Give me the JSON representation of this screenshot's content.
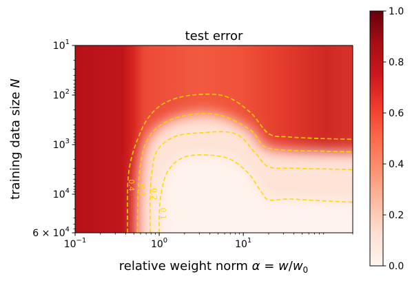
{
  "chart_data": {
    "type": "heatmap",
    "title": "test error",
    "xlabel": "relative weight norm α = w/w₀",
    "ylabel": "training data size N",
    "x_scale": "log",
    "y_scale": "log",
    "y_inverted": true,
    "xlim": [
      0.1,
      200
    ],
    "ylim": [
      10,
      60000
    ],
    "x_ticks": [
      {
        "value": 0.1,
        "base": "10",
        "exp": "−1"
      },
      {
        "value": 1,
        "base": "10",
        "exp": "0"
      },
      {
        "value": 10,
        "base": "10",
        "exp": "1"
      }
    ],
    "y_ticks": [
      {
        "value": 10,
        "base": "10",
        "exp": "1"
      },
      {
        "value": 100,
        "base": "10",
        "exp": "2"
      },
      {
        "value": 1000,
        "base": "10",
        "exp": "3"
      },
      {
        "value": 10000,
        "base": "10",
        "exp": "4"
      },
      {
        "value": 60000,
        "prefix": "6 × ",
        "base": "10",
        "exp": "4"
      }
    ],
    "colormap": "Reds",
    "colorbar": {
      "range": [
        0.0,
        1.0
      ],
      "ticks": [
        "0.0",
        "0.2",
        "0.4",
        "0.6",
        "0.8",
        "1.0"
      ]
    },
    "contour_color": "#ffd700",
    "contour_style": "dashed",
    "contours": [
      {
        "level": 0.4,
        "label": "0.4",
        "points": [
          [
            0.42,
            60000
          ],
          [
            0.42,
            8000
          ],
          [
            0.45,
            2500
          ],
          [
            0.55,
            800
          ],
          [
            0.75,
            280
          ],
          [
            1.2,
            140
          ],
          [
            2.5,
            100
          ],
          [
            6,
            105
          ],
          [
            12,
            220
          ],
          [
            20,
            600
          ],
          [
            35,
            700
          ],
          [
            80,
            750
          ],
          [
            200,
            780
          ]
        ]
      },
      {
        "level": 0.3,
        "label": "0.3",
        "points": [
          [
            0.55,
            60000
          ],
          [
            0.56,
            10000
          ],
          [
            0.6,
            2500
          ],
          [
            0.7,
            900
          ],
          [
            1.0,
            420
          ],
          [
            2,
            260
          ],
          [
            5,
            250
          ],
          [
            12,
            500
          ],
          [
            18,
            1100
          ],
          [
            35,
            1300
          ],
          [
            80,
            1350
          ],
          [
            200,
            1400
          ]
        ]
      },
      {
        "level": 0.2,
        "label": "0.2",
        "points": [
          [
            0.78,
            60000
          ],
          [
            0.78,
            12000
          ],
          [
            0.82,
            3500
          ],
          [
            0.95,
            1300
          ],
          [
            1.5,
            700
          ],
          [
            3,
            580
          ],
          [
            8,
            600
          ],
          [
            14,
            1500
          ],
          [
            20,
            2800
          ],
          [
            40,
            3000
          ],
          [
            100,
            3100
          ],
          [
            200,
            3200
          ]
        ]
      },
      {
        "level": 0.1,
        "label": "0.1",
        "points": [
          [
            1.0,
            60000
          ],
          [
            1.0,
            30000
          ],
          [
            1.05,
            10000
          ],
          [
            1.3,
            3200
          ],
          [
            2.2,
            1700
          ],
          [
            6,
            1800
          ],
          [
            11,
            3500
          ],
          [
            16,
            8500
          ],
          [
            20,
            13000
          ],
          [
            35,
            12500
          ],
          [
            80,
            13500
          ],
          [
            200,
            14500
          ]
        ]
      }
    ]
  }
}
